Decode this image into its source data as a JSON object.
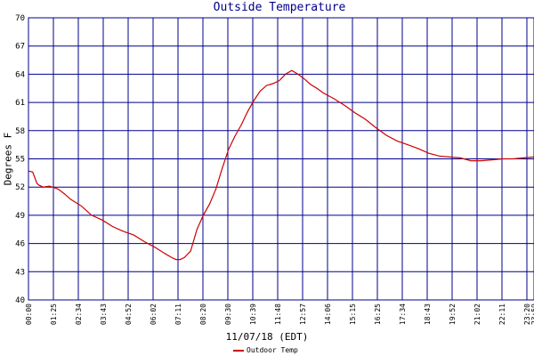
{
  "chart_data": {
    "type": "line",
    "title": "Outside Temperature",
    "xlabel": "11/07/18 (EDT)",
    "ylabel": "Degrees F",
    "ylim": [
      40,
      70
    ],
    "yticks": [
      40,
      43,
      46,
      49,
      52,
      55,
      58,
      61,
      64,
      67,
      70
    ],
    "xticks": [
      "00:00",
      "01:25",
      "02:34",
      "03:43",
      "04:52",
      "06:02",
      "07:11",
      "08:20",
      "09:30",
      "10:39",
      "11:48",
      "12:57",
      "14:06",
      "15:15",
      "16:25",
      "17:34",
      "18:43",
      "19:52",
      "21:02",
      "22:11",
      "23:20",
      "23:59"
    ],
    "grid": true,
    "legend_position": "bottom-center",
    "colors": {
      "grid": "#00008b",
      "series": "#cc0000",
      "title": "#00008b"
    },
    "series": [
      {
        "name": "Outdoor Temp",
        "x": [
          0,
          0.2,
          0.4,
          0.5,
          0.7,
          1,
          1.4,
          1.7,
          2,
          2.5,
          3,
          3.5,
          4,
          4.5,
          5,
          5.5,
          6,
          6.5,
          6.8,
          7,
          7.2,
          7.4,
          7.7,
          8,
          8.3,
          8.6,
          8.9,
          9.2,
          9.5,
          9.8,
          10.1,
          10.4,
          10.7,
          11,
          11.3,
          11.6,
          11.9,
          12.2,
          12.5,
          12.8,
          13.1,
          13.4,
          13.7,
          14,
          14.5,
          15,
          15.5,
          16,
          16.5,
          17,
          17.5,
          18,
          18.5,
          19,
          19.5,
          20,
          20.5,
          21,
          21.5,
          22,
          22.5,
          23,
          23.5,
          24
        ],
        "y": [
          53.7,
          53.6,
          52.4,
          52.2,
          52.0,
          52.1,
          51.8,
          51.3,
          50.7,
          50.0,
          49.0,
          48.5,
          47.8,
          47.3,
          46.9,
          46.2,
          45.6,
          44.9,
          44.5,
          44.3,
          44.3,
          44.5,
          45.2,
          47.5,
          49.0,
          50.2,
          51.8,
          54.0,
          56.0,
          57.4,
          58.6,
          60.0,
          61.2,
          62.2,
          62.8,
          63.0,
          63.3,
          64.0,
          64.4,
          64.0,
          63.5,
          62.9,
          62.5,
          62.0,
          61.4,
          60.7,
          59.9,
          59.2,
          58.3,
          57.5,
          56.9,
          56.5,
          56.1,
          55.6,
          55.3,
          55.2,
          55.1,
          54.8,
          54.8,
          54.9,
          55.0,
          55.0,
          55.1,
          55.2
        ]
      }
    ]
  }
}
